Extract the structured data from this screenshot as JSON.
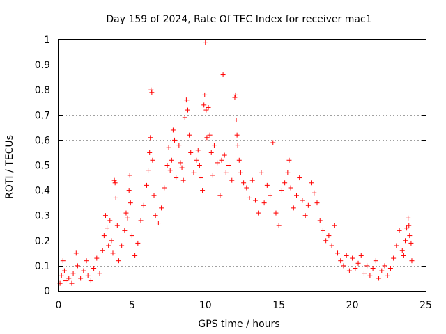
{
  "chart_data": {
    "type": "scatter",
    "title": "Day 159 of 2024, Rate Of TEC Index for receiver mac1",
    "xlabel": "GPS time / hours",
    "ylabel": "ROTI / TECUs",
    "xlim": [
      0,
      25
    ],
    "ylim": [
      0,
      1
    ],
    "xticks": [
      0,
      5,
      10,
      15,
      20,
      25
    ],
    "xtick_labels": [
      "0",
      "5",
      "10",
      "15",
      "20",
      "25"
    ],
    "yticks": [
      0,
      0.1,
      0.2,
      0.3,
      0.4,
      0.5,
      0.6,
      0.7,
      0.8,
      0.9,
      1
    ],
    "ytick_labels": [
      "0",
      "0.1",
      "0.2",
      "0.3",
      "0.4",
      "0.5",
      "0.6",
      "0.7",
      "0.8",
      "0.9",
      "1"
    ],
    "grid": true,
    "marker": "+",
    "color": "#ff0000",
    "series": [
      {
        "name": "ROTI",
        "points": [
          [
            0.1,
            0.03
          ],
          [
            0.2,
            0.06
          ],
          [
            0.3,
            0.12
          ],
          [
            0.4,
            0.08
          ],
          [
            0.5,
            0.04
          ],
          [
            0.7,
            0.05
          ],
          [
            0.9,
            0.03
          ],
          [
            1.0,
            0.07
          ],
          [
            1.2,
            0.15
          ],
          [
            1.3,
            0.1
          ],
          [
            1.5,
            0.05
          ],
          [
            1.7,
            0.08
          ],
          [
            1.9,
            0.12
          ],
          [
            2.0,
            0.06
          ],
          [
            2.2,
            0.04
          ],
          [
            2.4,
            0.09
          ],
          [
            2.6,
            0.13
          ],
          [
            2.8,
            0.07
          ],
          [
            3.0,
            0.16
          ],
          [
            3.1,
            0.22
          ],
          [
            3.2,
            0.3
          ],
          [
            3.3,
            0.25
          ],
          [
            3.4,
            0.18
          ],
          [
            3.5,
            0.28
          ],
          [
            3.6,
            0.2
          ],
          [
            3.7,
            0.15
          ],
          [
            3.8,
            0.44
          ],
          [
            3.85,
            0.43
          ],
          [
            3.9,
            0.37
          ],
          [
            4.0,
            0.26
          ],
          [
            4.1,
            0.12
          ],
          [
            4.3,
            0.18
          ],
          [
            4.5,
            0.24
          ],
          [
            4.6,
            0.31
          ],
          [
            4.7,
            0.29
          ],
          [
            4.8,
            0.4
          ],
          [
            4.85,
            0.46
          ],
          [
            4.9,
            0.35
          ],
          [
            5.0,
            0.22
          ],
          [
            5.2,
            0.14
          ],
          [
            5.4,
            0.19
          ],
          [
            5.6,
            0.28
          ],
          [
            5.8,
            0.34
          ],
          [
            6.0,
            0.42
          ],
          [
            6.1,
            0.48
          ],
          [
            6.2,
            0.55
          ],
          [
            6.25,
            0.61
          ],
          [
            6.3,
            0.8
          ],
          [
            6.35,
            0.79
          ],
          [
            6.4,
            0.52
          ],
          [
            6.5,
            0.38
          ],
          [
            6.6,
            0.3
          ],
          [
            6.8,
            0.27
          ],
          [
            7.0,
            0.33
          ],
          [
            7.2,
            0.41
          ],
          [
            7.4,
            0.5
          ],
          [
            7.5,
            0.57
          ],
          [
            7.6,
            0.48
          ],
          [
            7.7,
            0.52
          ],
          [
            7.8,
            0.64
          ],
          [
            7.9,
            0.6
          ],
          [
            8.0,
            0.45
          ],
          [
            8.2,
            0.58
          ],
          [
            8.3,
            0.51
          ],
          [
            8.4,
            0.49
          ],
          [
            8.5,
            0.44
          ],
          [
            8.6,
            0.69
          ],
          [
            8.7,
            0.76
          ],
          [
            8.75,
            0.76
          ],
          [
            8.8,
            0.72
          ],
          [
            8.9,
            0.62
          ],
          [
            9.0,
            0.55
          ],
          [
            9.2,
            0.47
          ],
          [
            9.4,
            0.52
          ],
          [
            9.5,
            0.56
          ],
          [
            9.6,
            0.5
          ],
          [
            9.7,
            0.45
          ],
          [
            9.8,
            0.4
          ],
          [
            9.9,
            0.74
          ],
          [
            9.95,
            0.78
          ],
          [
            10.0,
            0.99
          ],
          [
            10.05,
            0.72
          ],
          [
            10.1,
            0.61
          ],
          [
            10.2,
            0.73
          ],
          [
            10.3,
            0.62
          ],
          [
            10.4,
            0.55
          ],
          [
            10.5,
            0.46
          ],
          [
            10.6,
            0.58
          ],
          [
            10.8,
            0.51
          ],
          [
            11.0,
            0.38
          ],
          [
            11.1,
            0.52
          ],
          [
            11.2,
            0.86
          ],
          [
            11.3,
            0.54
          ],
          [
            11.4,
            0.47
          ],
          [
            11.6,
            0.5
          ],
          [
            11.8,
            0.44
          ],
          [
            12.0,
            0.77
          ],
          [
            12.05,
            0.78
          ],
          [
            12.1,
            0.68
          ],
          [
            12.15,
            0.62
          ],
          [
            12.2,
            0.58
          ],
          [
            12.3,
            0.52
          ],
          [
            12.4,
            0.47
          ],
          [
            12.6,
            0.43
          ],
          [
            12.8,
            0.41
          ],
          [
            13.0,
            0.37
          ],
          [
            13.2,
            0.44
          ],
          [
            13.4,
            0.36
          ],
          [
            13.6,
            0.31
          ],
          [
            13.8,
            0.47
          ],
          [
            14.0,
            0.35
          ],
          [
            14.2,
            0.42
          ],
          [
            14.4,
            0.38
          ],
          [
            14.6,
            0.59
          ],
          [
            14.8,
            0.31
          ],
          [
            15.0,
            0.26
          ],
          [
            15.2,
            0.4
          ],
          [
            15.4,
            0.43
          ],
          [
            15.6,
            0.47
          ],
          [
            15.7,
            0.52
          ],
          [
            15.8,
            0.41
          ],
          [
            16.0,
            0.33
          ],
          [
            16.2,
            0.38
          ],
          [
            16.4,
            0.45
          ],
          [
            16.6,
            0.36
          ],
          [
            16.8,
            0.3
          ],
          [
            17.0,
            0.34
          ],
          [
            17.2,
            0.43
          ],
          [
            17.4,
            0.39
          ],
          [
            17.6,
            0.35
          ],
          [
            17.8,
            0.28
          ],
          [
            18.0,
            0.24
          ],
          [
            18.2,
            0.2
          ],
          [
            18.4,
            0.22
          ],
          [
            18.6,
            0.18
          ],
          [
            18.8,
            0.26
          ],
          [
            19.0,
            0.15
          ],
          [
            19.2,
            0.12
          ],
          [
            19.4,
            0.1
          ],
          [
            19.6,
            0.14
          ],
          [
            19.8,
            0.08
          ],
          [
            20.0,
            0.13
          ],
          [
            20.2,
            0.09
          ],
          [
            20.4,
            0.11
          ],
          [
            20.6,
            0.14
          ],
          [
            20.8,
            0.07
          ],
          [
            21.0,
            0.1
          ],
          [
            21.2,
            0.06
          ],
          [
            21.4,
            0.09
          ],
          [
            21.6,
            0.12
          ],
          [
            21.8,
            0.05
          ],
          [
            22.0,
            0.08
          ],
          [
            22.2,
            0.1
          ],
          [
            22.4,
            0.06
          ],
          [
            22.6,
            0.09
          ],
          [
            22.8,
            0.13
          ],
          [
            23.0,
            0.18
          ],
          [
            23.2,
            0.24
          ],
          [
            23.4,
            0.16
          ],
          [
            23.5,
            0.14
          ],
          [
            23.6,
            0.2
          ],
          [
            23.7,
            0.25
          ],
          [
            23.8,
            0.29
          ],
          [
            23.85,
            0.26
          ],
          [
            23.9,
            0.22
          ],
          [
            24.0,
            0.19
          ],
          [
            24.05,
            0.12
          ]
        ]
      }
    ]
  }
}
